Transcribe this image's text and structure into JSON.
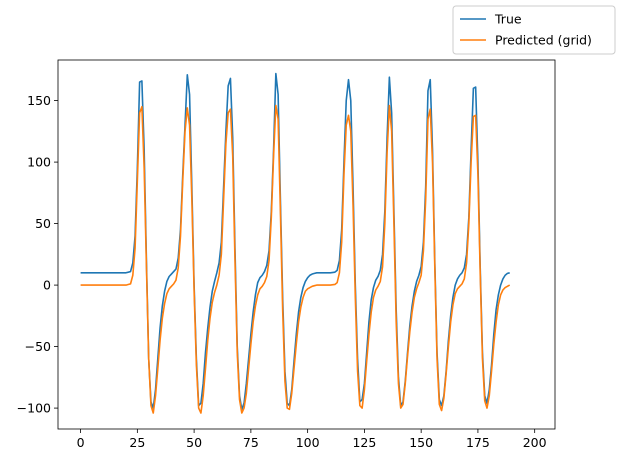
{
  "chart_data": {
    "type": "line",
    "title": "",
    "xlabel": "",
    "ylabel": "",
    "xlim": [
      -9.95,
      208.95
    ],
    "ylim": [
      -117,
      183
    ],
    "xticks": [
      0,
      25,
      50,
      75,
      100,
      125,
      150,
      175,
      200
    ],
    "yticks": [
      -100,
      -50,
      0,
      50,
      100,
      150
    ],
    "grid": false,
    "legend_position": "top-right (outside plot area)",
    "series": [
      {
        "name": "True",
        "color": "#1f77b4",
        "points": [
          [
            0,
            10
          ],
          [
            20,
            10
          ],
          [
            22,
            11
          ],
          [
            23,
            18
          ],
          [
            24,
            40
          ],
          [
            25,
            95
          ],
          [
            26,
            165
          ],
          [
            27,
            166
          ],
          [
            28,
            110
          ],
          [
            29,
            20
          ],
          [
            30,
            -60
          ],
          [
            31,
            -95
          ],
          [
            32,
            -100
          ],
          [
            33,
            -85
          ],
          [
            34,
            -60
          ],
          [
            35,
            -35
          ],
          [
            36,
            -17
          ],
          [
            37,
            -5
          ],
          [
            38,
            3
          ],
          [
            39,
            7
          ],
          [
            40,
            9
          ],
          [
            41,
            11
          ],
          [
            42,
            13
          ],
          [
            43,
            22
          ],
          [
            44,
            45
          ],
          [
            45,
            90
          ],
          [
            46,
            130
          ],
          [
            47,
            171
          ],
          [
            48,
            155
          ],
          [
            49,
            80
          ],
          [
            50,
            0
          ],
          [
            51,
            -60
          ],
          [
            52,
            -98
          ],
          [
            53,
            -96
          ],
          [
            54,
            -80
          ],
          [
            55,
            -55
          ],
          [
            56,
            -35
          ],
          [
            57,
            -18
          ],
          [
            58,
            -5
          ],
          [
            59,
            3
          ],
          [
            60,
            10
          ],
          [
            61,
            18
          ],
          [
            62,
            35
          ],
          [
            63,
            80
          ],
          [
            64,
            125
          ],
          [
            65,
            162
          ],
          [
            66,
            168
          ],
          [
            67,
            120
          ],
          [
            68,
            30
          ],
          [
            69,
            -50
          ],
          [
            70,
            -90
          ],
          [
            71,
            -101
          ],
          [
            72,
            -96
          ],
          [
            73,
            -80
          ],
          [
            74,
            -60
          ],
          [
            75,
            -40
          ],
          [
            76,
            -22
          ],
          [
            77,
            -8
          ],
          [
            78,
            2
          ],
          [
            79,
            6
          ],
          [
            80,
            8
          ],
          [
            81,
            11
          ],
          [
            82,
            16
          ],
          [
            83,
            28
          ],
          [
            84,
            60
          ],
          [
            85,
            110
          ],
          [
            86,
            172
          ],
          [
            87,
            155
          ],
          [
            88,
            70
          ],
          [
            89,
            -10
          ],
          [
            90,
            -70
          ],
          [
            91,
            -96
          ],
          [
            92,
            -98
          ],
          [
            93,
            -85
          ],
          [
            94,
            -62
          ],
          [
            95,
            -40
          ],
          [
            96,
            -22
          ],
          [
            97,
            -10
          ],
          [
            98,
            -2
          ],
          [
            99,
            3
          ],
          [
            100,
            6
          ],
          [
            101,
            8
          ],
          [
            102,
            9
          ],
          [
            103,
            9.5
          ],
          [
            104,
            10
          ],
          [
            110,
            10
          ],
          [
            112,
            10.5
          ],
          [
            113,
            12
          ],
          [
            114,
            20
          ],
          [
            115,
            45
          ],
          [
            116,
            100
          ],
          [
            117,
            150
          ],
          [
            118,
            167
          ],
          [
            119,
            150
          ],
          [
            120,
            80
          ],
          [
            121,
            0
          ],
          [
            122,
            -60
          ],
          [
            123,
            -95
          ],
          [
            124,
            -93
          ],
          [
            125,
            -80
          ],
          [
            126,
            -55
          ],
          [
            127,
            -30
          ],
          [
            128,
            -12
          ],
          [
            129,
            -2
          ],
          [
            130,
            4
          ],
          [
            131,
            7
          ],
          [
            132,
            12
          ],
          [
            133,
            25
          ],
          [
            134,
            60
          ],
          [
            135,
            120
          ],
          [
            136,
            169
          ],
          [
            137,
            140
          ],
          [
            138,
            60
          ],
          [
            139,
            -20
          ],
          [
            140,
            -75
          ],
          [
            141,
            -98
          ],
          [
            142,
            -95
          ],
          [
            143,
            -78
          ],
          [
            144,
            -55
          ],
          [
            145,
            -33
          ],
          [
            146,
            -17
          ],
          [
            147,
            -5
          ],
          [
            148,
            3
          ],
          [
            149,
            8
          ],
          [
            150,
            15
          ],
          [
            151,
            35
          ],
          [
            152,
            80
          ],
          [
            153,
            158
          ],
          [
            154,
            167
          ],
          [
            155,
            110
          ],
          [
            156,
            20
          ],
          [
            157,
            -55
          ],
          [
            158,
            -93
          ],
          [
            159,
            -98
          ],
          [
            160,
            -90
          ],
          [
            161,
            -70
          ],
          [
            162,
            -45
          ],
          [
            163,
            -25
          ],
          [
            164,
            -10
          ],
          [
            165,
            0
          ],
          [
            166,
            5
          ],
          [
            167,
            8
          ],
          [
            168,
            10
          ],
          [
            169,
            14
          ],
          [
            170,
            25
          ],
          [
            171,
            55
          ],
          [
            172,
            110
          ],
          [
            173,
            160
          ],
          [
            174,
            161
          ],
          [
            175,
            100
          ],
          [
            176,
            15
          ],
          [
            177,
            -55
          ],
          [
            178,
            -90
          ],
          [
            179,
            -96
          ],
          [
            180,
            -85
          ],
          [
            181,
            -65
          ],
          [
            182,
            -40
          ],
          [
            183,
            -20
          ],
          [
            184,
            -8
          ],
          [
            185,
            0
          ],
          [
            186,
            5
          ],
          [
            187,
            8
          ],
          [
            188,
            9.5
          ],
          [
            189,
            10
          ]
        ]
      },
      {
        "name": "Predicted (grid)",
        "color": "#ff7f0e",
        "points": [
          [
            0,
            0
          ],
          [
            20,
            0
          ],
          [
            22,
            1
          ],
          [
            23,
            8
          ],
          [
            24,
            30
          ],
          [
            25,
            85
          ],
          [
            26,
            140
          ],
          [
            27,
            145
          ],
          [
            28,
            95
          ],
          [
            29,
            15
          ],
          [
            30,
            -60
          ],
          [
            31,
            -98
          ],
          [
            32,
            -104
          ],
          [
            33,
            -90
          ],
          [
            34,
            -68
          ],
          [
            35,
            -45
          ],
          [
            36,
            -27
          ],
          [
            37,
            -15
          ],
          [
            38,
            -7
          ],
          [
            39,
            -3
          ],
          [
            40,
            -1
          ],
          [
            41,
            1
          ],
          [
            42,
            4
          ],
          [
            43,
            14
          ],
          [
            44,
            40
          ],
          [
            45,
            85
          ],
          [
            46,
            125
          ],
          [
            47,
            144
          ],
          [
            48,
            130
          ],
          [
            49,
            70
          ],
          [
            50,
            -5
          ],
          [
            51,
            -65
          ],
          [
            52,
            -100
          ],
          [
            53,
            -104
          ],
          [
            54,
            -90
          ],
          [
            55,
            -68
          ],
          [
            56,
            -45
          ],
          [
            57,
            -27
          ],
          [
            58,
            -14
          ],
          [
            59,
            -6
          ],
          [
            60,
            0
          ],
          [
            61,
            8
          ],
          [
            62,
            25
          ],
          [
            63,
            70
          ],
          [
            64,
            115
          ],
          [
            65,
            140
          ],
          [
            66,
            143
          ],
          [
            67,
            105
          ],
          [
            68,
            20
          ],
          [
            69,
            -55
          ],
          [
            70,
            -93
          ],
          [
            71,
            -104
          ],
          [
            72,
            -100
          ],
          [
            73,
            -88
          ],
          [
            74,
            -68
          ],
          [
            75,
            -48
          ],
          [
            76,
            -30
          ],
          [
            77,
            -17
          ],
          [
            78,
            -8
          ],
          [
            79,
            -3
          ],
          [
            80,
            -1
          ],
          [
            81,
            2
          ],
          [
            82,
            7
          ],
          [
            83,
            20
          ],
          [
            84,
            55
          ],
          [
            85,
            105
          ],
          [
            86,
            146
          ],
          [
            87,
            135
          ],
          [
            88,
            60
          ],
          [
            89,
            -20
          ],
          [
            90,
            -78
          ],
          [
            91,
            -100
          ],
          [
            92,
            -101
          ],
          [
            93,
            -88
          ],
          [
            94,
            -68
          ],
          [
            95,
            -48
          ],
          [
            96,
            -30
          ],
          [
            97,
            -18
          ],
          [
            98,
            -10
          ],
          [
            99,
            -5
          ],
          [
            100,
            -3
          ],
          [
            101,
            -2
          ],
          [
            102,
            -1
          ],
          [
            103,
            -0.5
          ],
          [
            104,
            0
          ],
          [
            110,
            0
          ],
          [
            112,
            0.5
          ],
          [
            113,
            2
          ],
          [
            114,
            10
          ],
          [
            115,
            35
          ],
          [
            116,
            90
          ],
          [
            117,
            130
          ],
          [
            118,
            138
          ],
          [
            119,
            125
          ],
          [
            120,
            65
          ],
          [
            121,
            -10
          ],
          [
            122,
            -70
          ],
          [
            123,
            -98
          ],
          [
            124,
            -100
          ],
          [
            125,
            -85
          ],
          [
            126,
            -62
          ],
          [
            127,
            -40
          ],
          [
            128,
            -22
          ],
          [
            129,
            -10
          ],
          [
            130,
            -4
          ],
          [
            131,
            -1
          ],
          [
            132,
            3
          ],
          [
            133,
            15
          ],
          [
            134,
            50
          ],
          [
            135,
            108
          ],
          [
            136,
            146
          ],
          [
            137,
            125
          ],
          [
            138,
            50
          ],
          [
            139,
            -30
          ],
          [
            140,
            -80
          ],
          [
            141,
            -100
          ],
          [
            142,
            -97
          ],
          [
            143,
            -80
          ],
          [
            144,
            -58
          ],
          [
            145,
            -38
          ],
          [
            146,
            -22
          ],
          [
            147,
            -10
          ],
          [
            148,
            -3
          ],
          [
            149,
            2
          ],
          [
            150,
            8
          ],
          [
            151,
            28
          ],
          [
            152,
            70
          ],
          [
            153,
            135
          ],
          [
            154,
            143
          ],
          [
            155,
            100
          ],
          [
            156,
            15
          ],
          [
            157,
            -60
          ],
          [
            158,
            -97
          ],
          [
            159,
            -102
          ],
          [
            160,
            -92
          ],
          [
            161,
            -72
          ],
          [
            162,
            -50
          ],
          [
            163,
            -30
          ],
          [
            164,
            -16
          ],
          [
            165,
            -7
          ],
          [
            166,
            -3
          ],
          [
            167,
            -1
          ],
          [
            168,
            1
          ],
          [
            169,
            5
          ],
          [
            170,
            18
          ],
          [
            171,
            50
          ],
          [
            172,
            100
          ],
          [
            173,
            137
          ],
          [
            174,
            138
          ],
          [
            175,
            90
          ],
          [
            176,
            10
          ],
          [
            177,
            -60
          ],
          [
            178,
            -94
          ],
          [
            179,
            -100
          ],
          [
            180,
            -90
          ],
          [
            181,
            -70
          ],
          [
            182,
            -48
          ],
          [
            183,
            -30
          ],
          [
            184,
            -16
          ],
          [
            185,
            -8
          ],
          [
            186,
            -4
          ],
          [
            187,
            -2
          ],
          [
            188,
            -1
          ],
          [
            189,
            0
          ]
        ]
      }
    ]
  }
}
